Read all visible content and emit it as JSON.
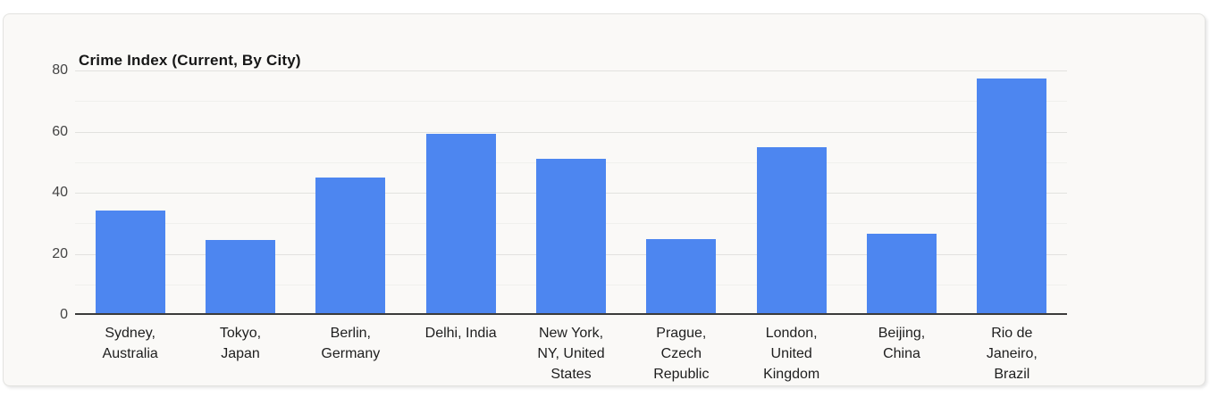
{
  "page": {
    "background": "#FFFFFF"
  },
  "card": {
    "background": "#FAF9F7",
    "border_color": "#E3E3E0"
  },
  "chart_data": {
    "type": "bar",
    "title": "Crime Index (Current, By City)",
    "categories": [
      "Sydney, Australia",
      "Tokyo, Japan",
      "Berlin, Germany",
      "Delhi, India",
      "New York, NY, United States",
      "Prague, Czech Republic",
      "London, United Kingdom",
      "Beijing, China",
      "Rio de Janeiro, Brazil"
    ],
    "category_display_lines": [
      [
        "Sydney,",
        "Australia"
      ],
      [
        "Tokyo,",
        "Japan"
      ],
      [
        "Berlin,",
        "Germany"
      ],
      [
        "Delhi, India"
      ],
      [
        "New York,",
        "NY, United",
        "States"
      ],
      [
        "Prague,",
        "Czech",
        "Republic"
      ],
      [
        "London,",
        "United",
        "Kingdom"
      ],
      [
        "Beijing,",
        "China"
      ],
      [
        "Rio de",
        "Janeiro,",
        "Brazil"
      ]
    ],
    "values": [
      33.8,
      24.2,
      44.7,
      59.2,
      50.8,
      24.3,
      54.8,
      26.2,
      77.3
    ],
    "xlabel": "",
    "ylabel": "",
    "ylim": [
      0,
      80
    ],
    "yticks": [
      0,
      20,
      40,
      60,
      80
    ],
    "minor_gridlines": [
      10,
      30,
      50,
      70
    ],
    "grid": true,
    "legend": "none",
    "bar_color": "#4D86F0",
    "axis_color": "#3B3B3B",
    "major_grid_color": "#E2E2DF",
    "minor_grid_color": "#F0F0ED",
    "tick_label_color": "#444444",
    "category_label_color": "#1E1E1E"
  }
}
